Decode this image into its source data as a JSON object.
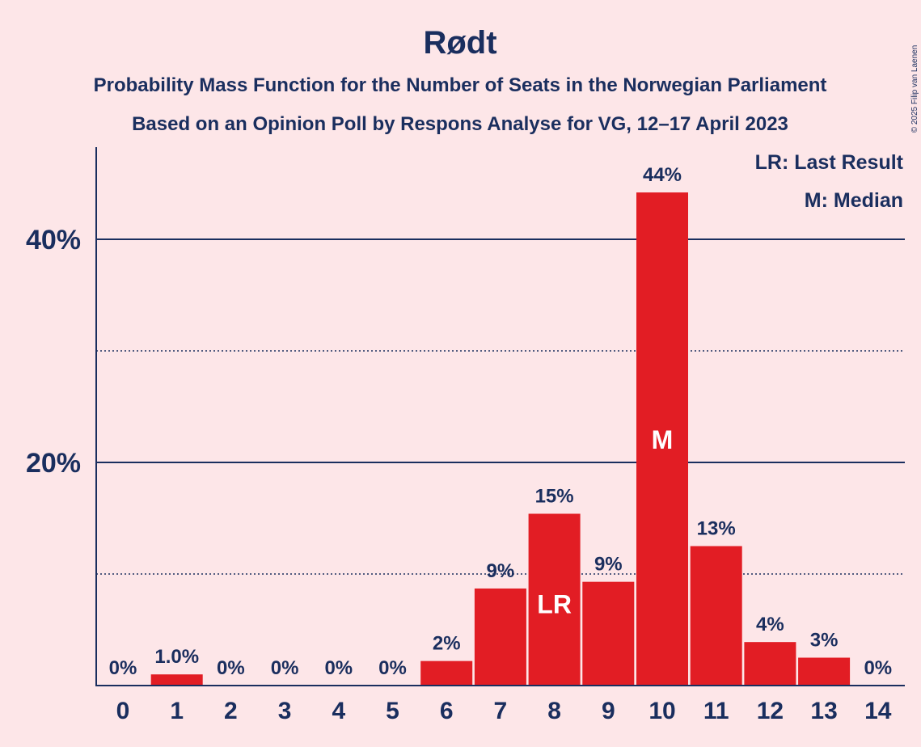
{
  "chart_data": {
    "type": "bar",
    "title": "Rødt",
    "subtitle_1": "Probability Mass Function for the Number of Seats in the Norwegian Parliament",
    "subtitle_2": "Based on an Opinion Poll by Respons Analyse for VG, 12–17 April 2023",
    "categories": [
      "0",
      "1",
      "2",
      "3",
      "4",
      "5",
      "6",
      "7",
      "8",
      "9",
      "10",
      "11",
      "12",
      "13",
      "14"
    ],
    "values": [
      0,
      1.0,
      0,
      0,
      0,
      0,
      2.2,
      8.7,
      15.4,
      9.3,
      44.2,
      12.5,
      3.9,
      2.5,
      0
    ],
    "value_labels": [
      "0%",
      "1.0%",
      "0%",
      "0%",
      "0%",
      "0%",
      "2%",
      "9%",
      "15%",
      "9%",
      "44%",
      "13%",
      "4%",
      "3%",
      "0%"
    ],
    "ylim": [
      0,
      48
    ],
    "y_ticks": [
      {
        "value": 20,
        "label": "20%"
      },
      {
        "value": 40,
        "label": "40%"
      }
    ],
    "minor_gridlines": [
      10,
      30
    ],
    "last_result_index": 8,
    "median_index": 10,
    "last_result_marker": "LR",
    "median_marker": "M",
    "legend": {
      "placement": "top-right",
      "items": [
        "LR: Last Result",
        "M: Median"
      ]
    },
    "colors": {
      "bar": "#e21d24",
      "text": "#1a2e5e",
      "background": "#fde6e8",
      "axis": "#1a2e5e"
    },
    "copyright": "© 2025 Filip van Laenen"
  }
}
